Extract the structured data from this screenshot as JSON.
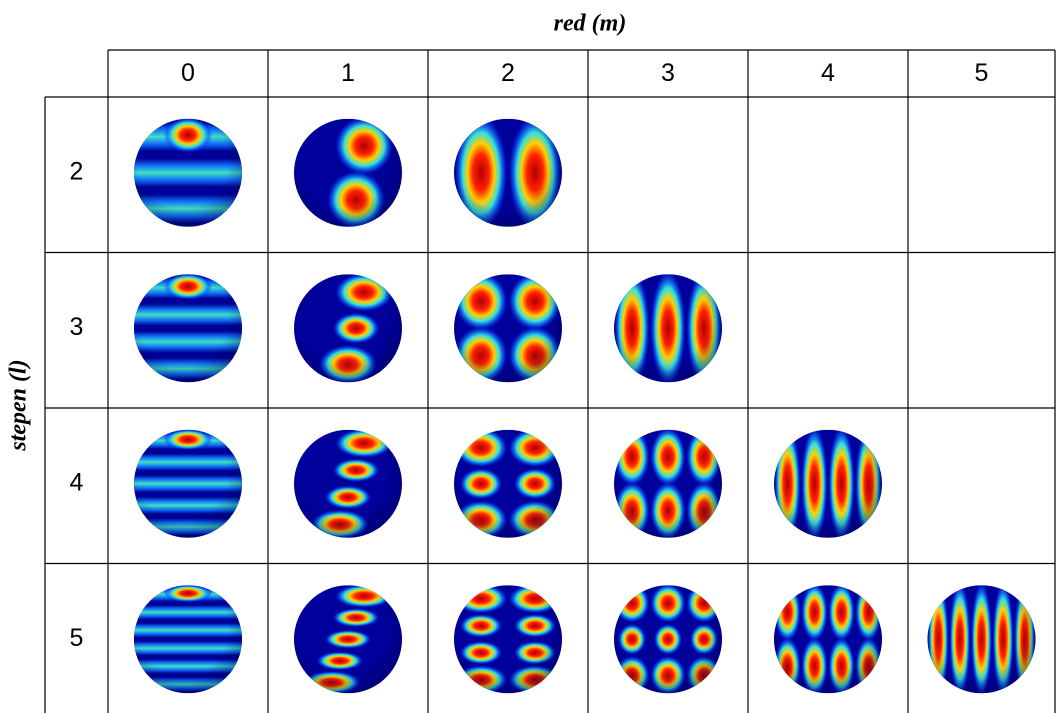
{
  "table": {
    "column_title": "red (m)",
    "row_title": "stepen (l)",
    "columns": [
      0,
      1,
      2,
      3,
      4,
      5
    ],
    "rows": [
      2,
      3,
      4,
      5
    ]
  }
}
